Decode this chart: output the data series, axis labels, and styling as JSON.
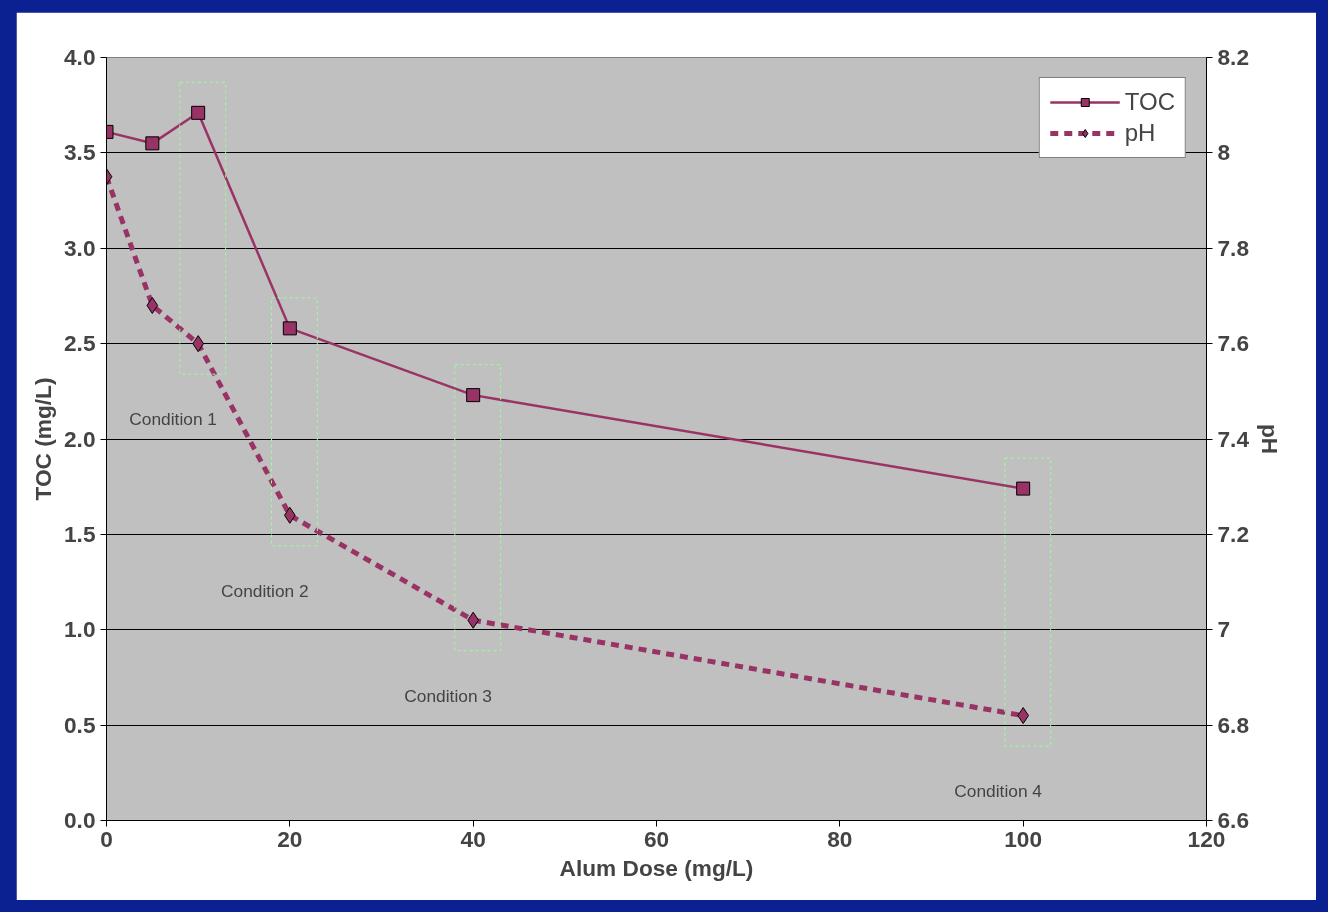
{
  "chart_data": {
    "type": "line",
    "xlabel": "Alum Dose (mg/L)",
    "ylabel": "TOC (mg/L)",
    "y2label": "pH",
    "x": [
      0,
      5,
      10,
      20,
      40,
      100
    ],
    "series": [
      {
        "name": "TOC",
        "color": "#993366",
        "values": [
          3.61,
          3.55,
          3.71,
          2.58,
          2.23,
          1.74
        ],
        "marker": "square",
        "line_style": "solid"
      },
      {
        "name": "pH",
        "color": "#993366",
        "values": [
          7.95,
          7.68,
          7.6,
          7.24,
          7.02,
          6.82
        ],
        "marker": "diamond",
        "line_style": "dashed",
        "axis": "y2"
      }
    ],
    "xlim": [
      0,
      120
    ],
    "xticks": [
      0,
      20,
      40,
      60,
      80,
      100,
      120
    ],
    "ylim": [
      0,
      4
    ],
    "yticks": [
      {
        "value": 0,
        "label": "0.0"
      },
      0.5,
      {
        "value": 1,
        "label": "1.0"
      },
      1.5,
      {
        "value": 2,
        "label": "2.0"
      },
      2.5,
      {
        "value": 3,
        "label": "3.0"
      },
      3.5,
      {
        "value": 4,
        "label": "4.0"
      }
    ],
    "y2lim": [
      6.6,
      8.2
    ],
    "y2ticks": [
      6.6,
      6.8,
      7,
      7.2,
      7.4,
      7.6,
      7.8,
      8,
      8.2
    ],
    "annotations": [
      "Condition 1",
      "Condition 2",
      "Condition 3",
      "Condition 4"
    ],
    "grid": "y",
    "legend": "top right"
  }
}
